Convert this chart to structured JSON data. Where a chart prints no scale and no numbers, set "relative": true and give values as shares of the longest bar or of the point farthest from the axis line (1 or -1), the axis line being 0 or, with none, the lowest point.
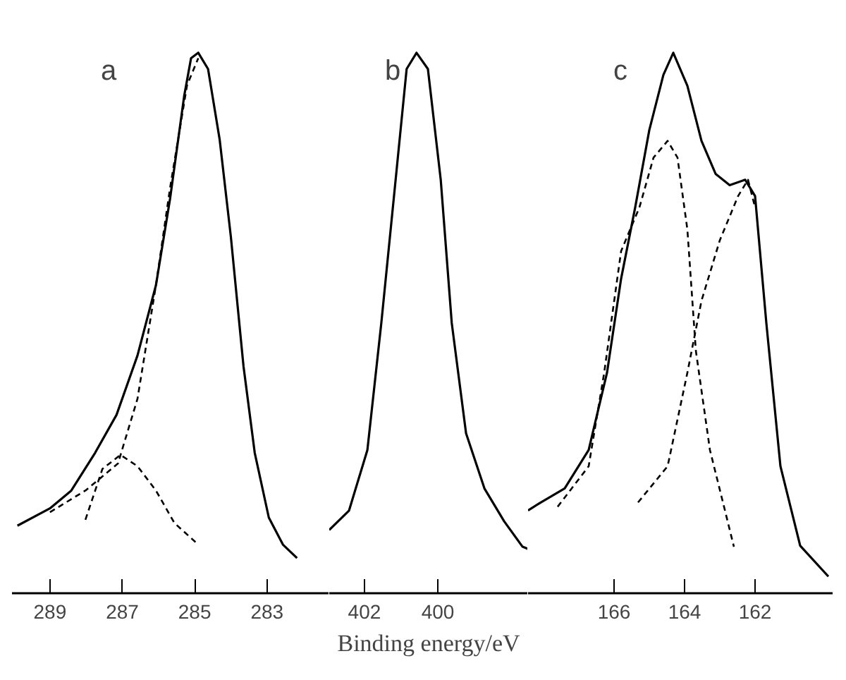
{
  "chart_data": [
    {
      "type": "line",
      "title": "a",
      "relative": true,
      "xlim": [
        290.05,
        281.28
      ],
      "xticks": [
        289,
        287,
        285,
        283
      ],
      "grid": false,
      "series": [
        {
          "color": "#000000",
          "line_style": "solid",
          "x": [
            289.9,
            289.0,
            288.41,
            287.75,
            287.16,
            286.58,
            286.07,
            285.68,
            285.29,
            285.1,
            284.9,
            284.63,
            284.31,
            284.0,
            283.65,
            283.34,
            282.95,
            282.56,
            282.17
          ],
          "values": [
            0.125,
            0.157,
            0.19,
            0.26,
            0.33,
            0.44,
            0.57,
            0.73,
            0.92,
            0.99,
            1.0,
            0.97,
            0.84,
            0.66,
            0.42,
            0.26,
            0.14,
            0.09,
            0.065
          ]
        },
        {
          "color": "#000000",
          "line_style": "dashed",
          "x": [
            289.0,
            288.02,
            287.12,
            286.58,
            286.07,
            285.68,
            285.21,
            284.9
          ],
          "values": [
            0.15,
            0.19,
            0.24,
            0.36,
            0.57,
            0.75,
            0.94,
            0.99
          ]
        },
        {
          "color": "#000000",
          "line_style": "dashed",
          "x": [
            288.02,
            287.55,
            287.05,
            286.58,
            286.07,
            285.56,
            284.9
          ],
          "values": [
            0.136,
            0.23,
            0.256,
            0.235,
            0.19,
            0.13,
            0.09
          ]
        }
      ]
    },
    {
      "type": "line",
      "title": "b",
      "xlabel": "Binding energy/eV",
      "relative": true,
      "xlim": [
        402.96,
        397.54
      ],
      "xticks": [
        402,
        400
      ],
      "grid": false,
      "series": [
        {
          "color": "#000000",
          "line_style": "solid",
          "x": [
            402.96,
            402.42,
            401.92,
            401.54,
            401.15,
            400.85,
            400.58,
            400.27,
            399.92,
            399.62,
            399.23,
            398.73,
            398.19,
            397.69,
            397.54
          ],
          "values": [
            0.117,
            0.153,
            0.265,
            0.5,
            0.765,
            0.97,
            1.0,
            0.97,
            0.765,
            0.5,
            0.296,
            0.194,
            0.133,
            0.086,
            0.082
          ]
        }
      ]
    },
    {
      "type": "line",
      "title": "c",
      "relative": true,
      "xlim": [
        168.44,
        159.8
      ],
      "xticks": [
        166,
        164,
        162
      ],
      "grid": false,
      "series": [
        {
          "color": "#000000",
          "line_style": "solid",
          "x": [
            168.44,
            168.08,
            167.4,
            166.72,
            166.2,
            165.8,
            165.4,
            165.0,
            164.6,
            164.32,
            163.92,
            163.52,
            163.12,
            162.72,
            162.28,
            162.0,
            161.68,
            161.28,
            160.72,
            159.92
          ],
          "values": [
            0.153,
            0.168,
            0.194,
            0.265,
            0.408,
            0.582,
            0.714,
            0.857,
            0.959,
            1.0,
            0.939,
            0.837,
            0.776,
            0.755,
            0.765,
            0.735,
            0.5,
            0.235,
            0.088,
            0.031
          ]
        },
        {
          "color": "#000000",
          "line_style": "dashed",
          "x": [
            167.6,
            166.72,
            166.28,
            165.8,
            165.28,
            164.88,
            164.48,
            164.2,
            163.92,
            163.68,
            163.28,
            162.88,
            162.6
          ],
          "values": [
            0.16,
            0.235,
            0.408,
            0.633,
            0.714,
            0.806,
            0.837,
            0.806,
            0.673,
            0.449,
            0.265,
            0.16,
            0.086
          ]
        },
        {
          "color": "#000000",
          "line_style": "dashed",
          "x": [
            165.32,
            164.48,
            163.92,
            163.52,
            163.0,
            162.48,
            162.2,
            162.0
          ],
          "values": [
            0.168,
            0.235,
            0.408,
            0.541,
            0.653,
            0.735,
            0.765,
            0.714
          ]
        }
      ]
    }
  ]
}
